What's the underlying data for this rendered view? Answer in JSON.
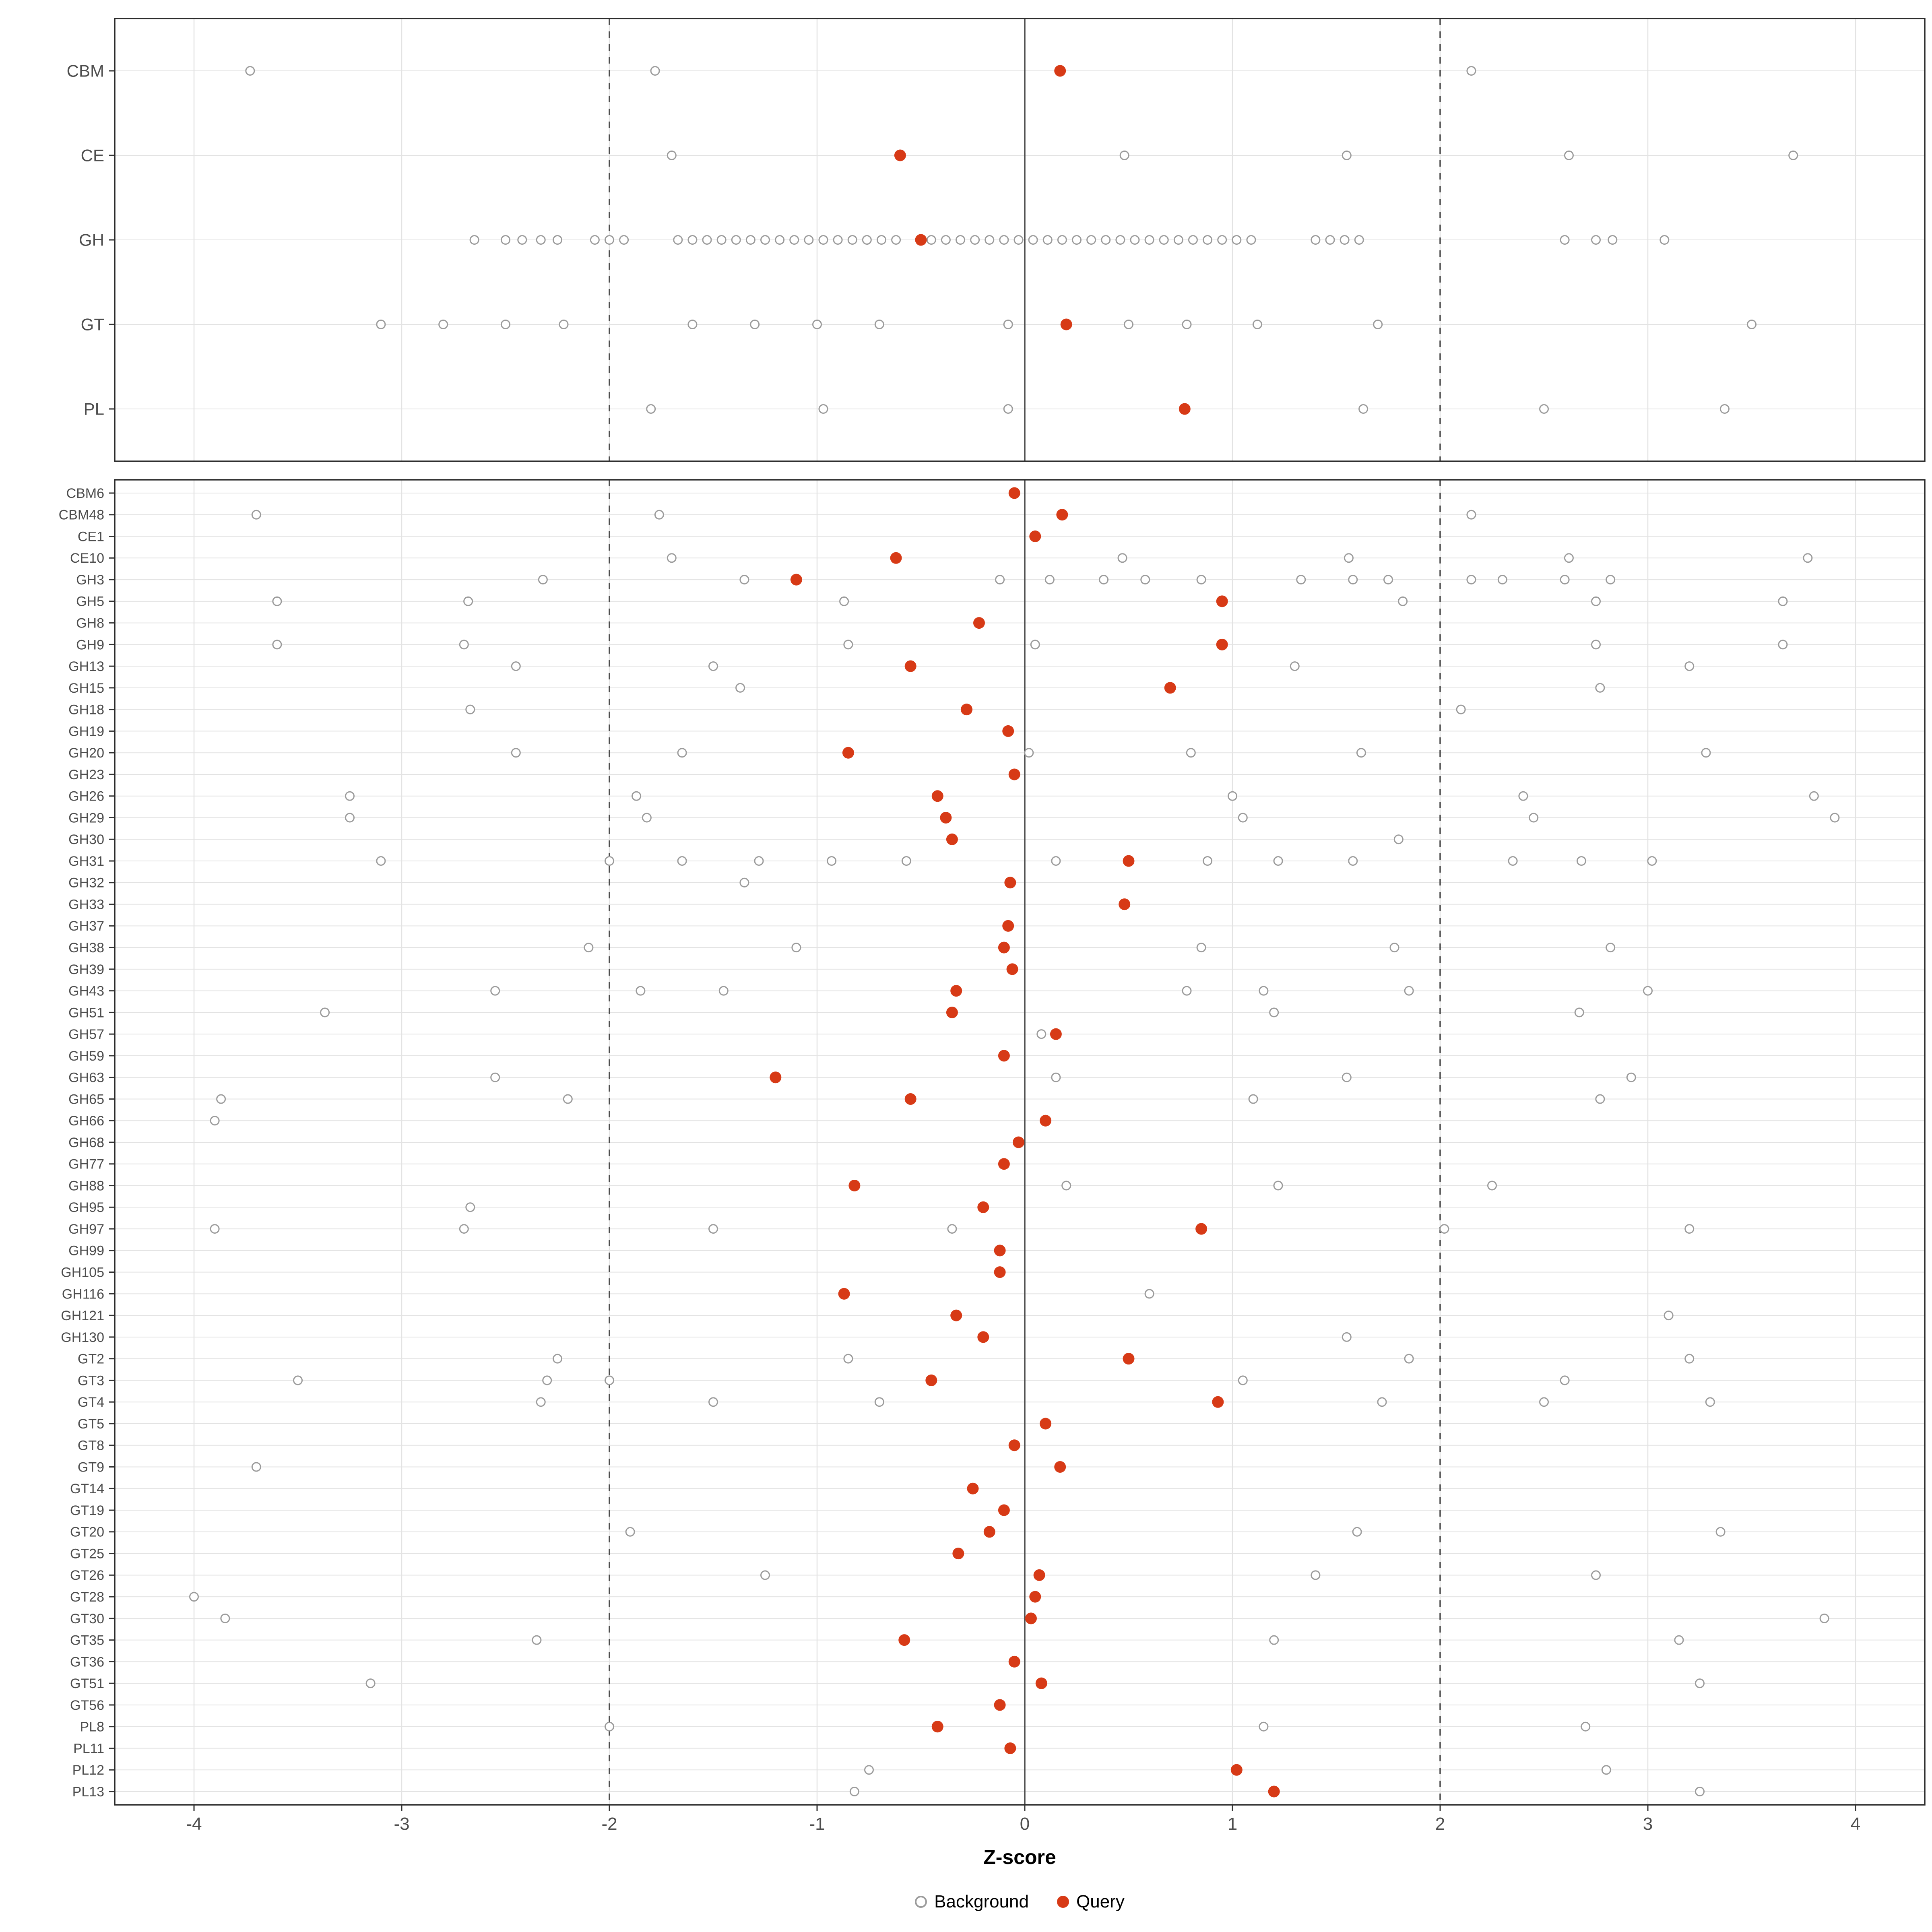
{
  "chart_data": {
    "type": "scatter",
    "xlabel": "Z-score",
    "x_ticks": [
      -4,
      -3,
      -2,
      -1,
      0,
      1,
      2,
      3,
      4
    ],
    "xlim": [
      -4.38,
      4.33
    ],
    "reference_lines": {
      "solid": [
        0
      ],
      "dashed": [
        -2,
        2
      ]
    },
    "legend": [
      {
        "label": "Background",
        "marker": "open-circle",
        "color": "#9b9b9b"
      },
      {
        "label": "Query",
        "marker": "filled-circle",
        "color": "#d73a16"
      }
    ],
    "colors": {
      "query": "#d73a16",
      "background_point": "#9b9b9b",
      "grid": "#e3e3e3",
      "panel_border": "#2b2b2b",
      "ref_line": "#4d4d4d",
      "axis_text": "#4d4d4d",
      "tick": "#333333"
    },
    "panels": [
      {
        "name": "class-panel",
        "rows": [
          {
            "label": "CBM",
            "query": 0.17,
            "background": [
              -3.73,
              -1.78,
              2.15
            ]
          },
          {
            "label": "CE",
            "query": -0.6,
            "background": [
              -1.7,
              0.48,
              1.55,
              2.62,
              3.7
            ]
          },
          {
            "label": "GH",
            "query": -0.5,
            "background": [
              -2.65,
              -2.5,
              -2.42,
              -2.33,
              -2.25,
              -2.07,
              -2.0,
              -1.93,
              -1.67,
              -1.6,
              -1.53,
              -1.46,
              -1.39,
              -1.32,
              -1.25,
              -1.18,
              -1.11,
              -1.04,
              -0.97,
              -0.9,
              -0.83,
              -0.76,
              -0.69,
              -0.62,
              -0.45,
              -0.38,
              -0.31,
              -0.24,
              -0.17,
              -0.1,
              -0.03,
              0.04,
              0.11,
              0.18,
              0.25,
              0.32,
              0.39,
              0.46,
              0.53,
              0.6,
              0.67,
              0.74,
              0.81,
              0.88,
              0.95,
              1.02,
              1.09,
              1.4,
              1.47,
              1.54,
              1.61,
              2.6,
              2.75,
              2.83,
              3.08
            ]
          },
          {
            "label": "GT",
            "query": 0.2,
            "background": [
              -3.1,
              -2.8,
              -2.5,
              -2.22,
              -1.6,
              -1.3,
              -1.0,
              -0.7,
              -0.08,
              0.5,
              0.78,
              1.12,
              1.7,
              3.5
            ]
          },
          {
            "label": "PL",
            "query": 0.77,
            "background": [
              -1.8,
              -0.97,
              -0.08,
              1.63,
              2.5,
              3.37
            ]
          }
        ]
      },
      {
        "name": "family-panel",
        "rows": [
          {
            "label": "CBM6",
            "query": -0.05,
            "background": []
          },
          {
            "label": "CBM48",
            "query": 0.18,
            "background": [
              -3.7,
              -1.76,
              2.15
            ]
          },
          {
            "label": "CE1",
            "query": 0.05,
            "background": []
          },
          {
            "label": "CE10",
            "query": -0.62,
            "background": [
              -1.7,
              0.47,
              1.56,
              2.62,
              3.77
            ]
          },
          {
            "label": "GH3",
            "query": -1.1,
            "background": [
              -2.32,
              -1.35,
              -0.12,
              0.12,
              0.38,
              0.58,
              0.85,
              1.33,
              1.58,
              1.75,
              2.15,
              2.3,
              2.6,
              2.82
            ]
          },
          {
            "label": "GH5",
            "query": 0.95,
            "background": [
              -3.6,
              -2.68,
              -0.87,
              1.82,
              2.75,
              3.65
            ]
          },
          {
            "label": "GH8",
            "query": -0.22,
            "background": []
          },
          {
            "label": "GH9",
            "query": 0.95,
            "background": [
              -3.6,
              -2.7,
              -0.85,
              0.05,
              2.75,
              3.65
            ]
          },
          {
            "label": "GH13",
            "query": -0.55,
            "background": [
              -2.45,
              -1.5,
              1.3,
              3.2
            ]
          },
          {
            "label": "GH15",
            "query": 0.7,
            "background": [
              -1.37,
              2.77
            ]
          },
          {
            "label": "GH18",
            "query": -0.28,
            "background": [
              -2.67,
              2.1
            ]
          },
          {
            "label": "GH19",
            "query": -0.08,
            "background": []
          },
          {
            "label": "GH20",
            "query": -0.85,
            "background": [
              -2.45,
              -1.65,
              0.02,
              0.8,
              1.62,
              3.28
            ]
          },
          {
            "label": "GH23",
            "query": -0.05,
            "background": []
          },
          {
            "label": "GH26",
            "query": -0.42,
            "background": [
              -3.25,
              -1.87,
              1.0,
              2.4,
              3.8
            ]
          },
          {
            "label": "GH29",
            "query": -0.38,
            "background": [
              -3.25,
              -1.82,
              1.05,
              2.45,
              3.9
            ]
          },
          {
            "label": "GH30",
            "query": -0.35,
            "background": [
              1.8
            ]
          },
          {
            "label": "GH31",
            "query": 0.5,
            "background": [
              -3.1,
              -2.0,
              -1.65,
              -1.28,
              -0.93,
              -0.57,
              0.15,
              0.88,
              1.22,
              1.58,
              2.35,
              2.68,
              3.02
            ]
          },
          {
            "label": "GH32",
            "query": -0.07,
            "background": [
              -1.35
            ]
          },
          {
            "label": "GH33",
            "query": 0.48,
            "background": []
          },
          {
            "label": "GH37",
            "query": -0.08,
            "background": []
          },
          {
            "label": "GH38",
            "query": -0.1,
            "background": [
              -2.1,
              -1.1,
              0.85,
              1.78,
              2.82
            ]
          },
          {
            "label": "GH39",
            "query": -0.06,
            "background": []
          },
          {
            "label": "GH43",
            "query": -0.33,
            "background": [
              -2.55,
              -1.85,
              -1.45,
              0.78,
              1.15,
              1.85,
              3.0
            ]
          },
          {
            "label": "GH51",
            "query": -0.35,
            "background": [
              -3.37,
              1.2,
              2.67
            ]
          },
          {
            "label": "GH57",
            "query": 0.15,
            "background": [
              0.08
            ]
          },
          {
            "label": "GH59",
            "query": -0.1,
            "background": []
          },
          {
            "label": "GH63",
            "query": -1.2,
            "background": [
              -2.55,
              0.15,
              1.55,
              2.92
            ]
          },
          {
            "label": "GH65",
            "query": -0.55,
            "background": [
              -3.87,
              -2.2,
              1.1,
              2.77
            ]
          },
          {
            "label": "GH66",
            "query": 0.1,
            "background": [
              -3.9
            ]
          },
          {
            "label": "GH68",
            "query": -0.03,
            "background": []
          },
          {
            "label": "GH77",
            "query": -0.1,
            "background": []
          },
          {
            "label": "GH88",
            "query": -0.82,
            "background": [
              0.2,
              1.22,
              2.25
            ]
          },
          {
            "label": "GH95",
            "query": -0.2,
            "background": [
              -2.67
            ]
          },
          {
            "label": "GH97",
            "query": 0.85,
            "background": [
              -3.9,
              -2.7,
              -1.5,
              -0.35,
              2.02,
              3.2
            ]
          },
          {
            "label": "GH99",
            "query": -0.12,
            "background": []
          },
          {
            "label": "GH105",
            "query": -0.12,
            "background": []
          },
          {
            "label": "GH116",
            "query": -0.87,
            "background": [
              0.6
            ]
          },
          {
            "label": "GH121",
            "query": -0.33,
            "background": [
              3.1
            ]
          },
          {
            "label": "GH130",
            "query": -0.2,
            "background": [
              1.55
            ]
          },
          {
            "label": "GT2",
            "query": 0.5,
            "background": [
              -2.25,
              -0.85,
              1.85,
              3.2
            ]
          },
          {
            "label": "GT3",
            "query": -0.45,
            "background": [
              -3.5,
              -2.3,
              -2.0,
              1.05,
              2.6
            ]
          },
          {
            "label": "GT4",
            "query": 0.93,
            "background": [
              -2.33,
              -1.5,
              -0.7,
              1.72,
              2.5,
              3.3
            ]
          },
          {
            "label": "GT5",
            "query": 0.1,
            "background": []
          },
          {
            "label": "GT8",
            "query": -0.05,
            "background": []
          },
          {
            "label": "GT9",
            "query": 0.17,
            "background": [
              -3.7
            ]
          },
          {
            "label": "GT14",
            "query": -0.25,
            "background": []
          },
          {
            "label": "GT19",
            "query": -0.1,
            "background": []
          },
          {
            "label": "GT20",
            "query": -0.17,
            "background": [
              -1.9,
              1.6,
              3.35
            ]
          },
          {
            "label": "GT25",
            "query": -0.32,
            "background": []
          },
          {
            "label": "GT26",
            "query": 0.07,
            "background": [
              -1.25,
              1.4,
              2.75
            ]
          },
          {
            "label": "GT28",
            "query": 0.05,
            "background": [
              -4.0
            ]
          },
          {
            "label": "GT30",
            "query": 0.03,
            "background": [
              -3.85,
              3.85
            ]
          },
          {
            "label": "GT35",
            "query": -0.58,
            "background": [
              -2.35,
              1.2,
              3.15
            ]
          },
          {
            "label": "GT36",
            "query": -0.05,
            "background": []
          },
          {
            "label": "GT51",
            "query": 0.08,
            "background": [
              -3.15,
              3.25
            ]
          },
          {
            "label": "GT56",
            "query": -0.12,
            "background": []
          },
          {
            "label": "PL8",
            "query": -0.42,
            "background": [
              -2.0,
              1.15,
              2.7
            ]
          },
          {
            "label": "PL11",
            "query": -0.07,
            "background": []
          },
          {
            "label": "PL12",
            "query": 1.02,
            "background": [
              -0.75,
              2.8
            ]
          },
          {
            "label": "PL13",
            "query": 1.2,
            "background": [
              -0.82,
              3.25
            ]
          }
        ]
      }
    ]
  }
}
